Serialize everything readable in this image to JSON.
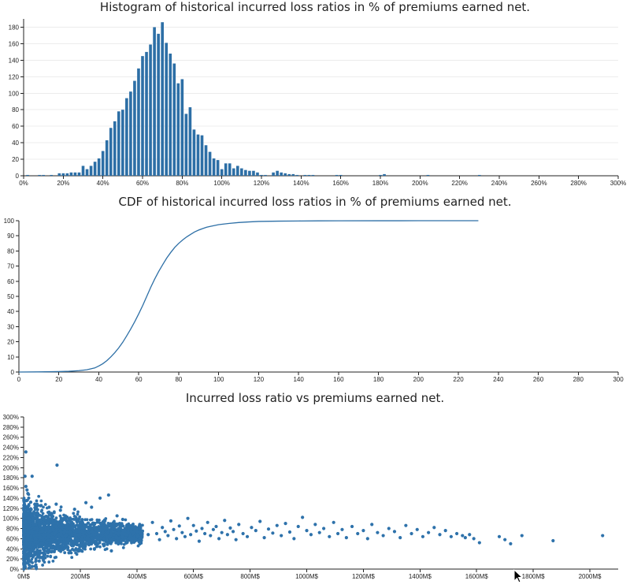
{
  "chart_data": [
    {
      "type": "bar",
      "title": "Histogram of historical incurred loss ratios in % of premiums earned net.",
      "xlim": [
        0,
        300
      ],
      "ylim": [
        0,
        190
      ],
      "bin_width": 2,
      "xticks": [
        0,
        20,
        40,
        60,
        80,
        100,
        120,
        140,
        160,
        180,
        200,
        220,
        240,
        260,
        280,
        300
      ],
      "xtick_suffix": "%",
      "yticks": [
        0,
        20,
        40,
        60,
        80,
        100,
        120,
        140,
        160,
        180
      ],
      "bins": [
        {
          "x": 2,
          "y": 1
        },
        {
          "x": 4,
          "y": 0
        },
        {
          "x": 8,
          "y": 1
        },
        {
          "x": 10,
          "y": 1
        },
        {
          "x": 12,
          "y": 0
        },
        {
          "x": 14,
          "y": 1
        },
        {
          "x": 18,
          "y": 3
        },
        {
          "x": 20,
          "y": 3
        },
        {
          "x": 22,
          "y": 3
        },
        {
          "x": 24,
          "y": 4
        },
        {
          "x": 26,
          "y": 4
        },
        {
          "x": 28,
          "y": 4
        },
        {
          "x": 30,
          "y": 12
        },
        {
          "x": 32,
          "y": 8
        },
        {
          "x": 34,
          "y": 12
        },
        {
          "x": 36,
          "y": 17
        },
        {
          "x": 38,
          "y": 21
        },
        {
          "x": 40,
          "y": 30
        },
        {
          "x": 42,
          "y": 43
        },
        {
          "x": 44,
          "y": 58
        },
        {
          "x": 46,
          "y": 66
        },
        {
          "x": 48,
          "y": 78
        },
        {
          "x": 50,
          "y": 80
        },
        {
          "x": 52,
          "y": 94
        },
        {
          "x": 54,
          "y": 102
        },
        {
          "x": 56,
          "y": 115
        },
        {
          "x": 58,
          "y": 130
        },
        {
          "x": 60,
          "y": 145
        },
        {
          "x": 62,
          "y": 150
        },
        {
          "x": 64,
          "y": 159
        },
        {
          "x": 66,
          "y": 180
        },
        {
          "x": 68,
          "y": 172
        },
        {
          "x": 70,
          "y": 186
        },
        {
          "x": 72,
          "y": 161
        },
        {
          "x": 74,
          "y": 148
        },
        {
          "x": 76,
          "y": 136
        },
        {
          "x": 78,
          "y": 112
        },
        {
          "x": 80,
          "y": 117
        },
        {
          "x": 82,
          "y": 75
        },
        {
          "x": 84,
          "y": 83
        },
        {
          "x": 86,
          "y": 56
        },
        {
          "x": 88,
          "y": 50
        },
        {
          "x": 90,
          "y": 49
        },
        {
          "x": 92,
          "y": 37
        },
        {
          "x": 94,
          "y": 29
        },
        {
          "x": 96,
          "y": 21
        },
        {
          "x": 98,
          "y": 19
        },
        {
          "x": 100,
          "y": 8
        },
        {
          "x": 102,
          "y": 15
        },
        {
          "x": 104,
          "y": 15
        },
        {
          "x": 106,
          "y": 9
        },
        {
          "x": 108,
          "y": 12
        },
        {
          "x": 110,
          "y": 9
        },
        {
          "x": 112,
          "y": 7
        },
        {
          "x": 114,
          "y": 6
        },
        {
          "x": 116,
          "y": 6
        },
        {
          "x": 118,
          "y": 4
        },
        {
          "x": 120,
          "y": 1
        },
        {
          "x": 122,
          "y": 1
        },
        {
          "x": 126,
          "y": 4
        },
        {
          "x": 128,
          "y": 6
        },
        {
          "x": 130,
          "y": 4
        },
        {
          "x": 132,
          "y": 3
        },
        {
          "x": 134,
          "y": 2
        },
        {
          "x": 136,
          "y": 2
        },
        {
          "x": 138,
          "y": 1
        },
        {
          "x": 142,
          "y": 1
        },
        {
          "x": 144,
          "y": 1
        },
        {
          "x": 146,
          "y": 1
        },
        {
          "x": 158,
          "y": 1
        },
        {
          "x": 160,
          "y": 1
        },
        {
          "x": 180,
          "y": 1
        },
        {
          "x": 182,
          "y": 2
        },
        {
          "x": 204,
          "y": 1
        },
        {
          "x": 230,
          "y": 1
        }
      ]
    },
    {
      "type": "line",
      "title": "CDF of historical incurred loss ratios in % of premiums earned net.",
      "xlim": [
        0,
        300
      ],
      "ylim": [
        0,
        100
      ],
      "xticks": [
        0,
        20,
        40,
        60,
        80,
        100,
        120,
        140,
        160,
        180,
        200,
        220,
        240,
        260,
        280,
        300
      ],
      "yticks": [
        0,
        10,
        20,
        30,
        40,
        50,
        60,
        70,
        80,
        90,
        100
      ],
      "x": [
        0,
        10,
        20,
        25,
        30,
        34,
        38,
        40,
        42,
        44,
        46,
        48,
        50,
        52,
        54,
        56,
        58,
        60,
        62,
        64,
        66,
        68,
        70,
        72,
        74,
        76,
        78,
        80,
        82,
        84,
        86,
        88,
        90,
        92,
        94,
        96,
        100,
        105,
        110,
        115,
        120,
        130,
        140,
        150,
        160,
        180,
        200,
        230
      ],
      "y": [
        0,
        0.1,
        0.3,
        0.5,
        0.9,
        1.5,
        2.7,
        4,
        5.5,
        7.5,
        10,
        12.8,
        16,
        19.7,
        24,
        28.5,
        33.3,
        38.5,
        44,
        50,
        56,
        61.5,
        66.5,
        71,
        75.3,
        79,
        82.3,
        85,
        87.3,
        89.3,
        91,
        92.6,
        93.8,
        94.8,
        95.7,
        96.3,
        97.4,
        98.2,
        98.8,
        99.2,
        99.5,
        99.7,
        99.82,
        99.9,
        99.94,
        99.97,
        99.99,
        100
      ]
    },
    {
      "type": "scatter",
      "title": "Incurred loss ratio vs premiums earned net.",
      "xlim": [
        0,
        2100
      ],
      "ylim": [
        0,
        300
      ],
      "xticks": [
        0,
        200,
        400,
        600,
        800,
        1000,
        1200,
        1400,
        1600,
        1800,
        2000
      ],
      "xtick_suffix": "M$",
      "yticks": [
        0,
        20,
        40,
        60,
        80,
        100,
        120,
        140,
        160,
        180,
        200,
        220,
        240,
        260,
        280,
        300
      ],
      "ytick_suffix": "%",
      "points": [
        {
          "x": 8,
          "y": 231
        },
        {
          "x": 5,
          "y": 183
        },
        {
          "x": 30,
          "y": 183
        },
        {
          "x": 118,
          "y": 205
        },
        {
          "x": 8,
          "y": 163
        },
        {
          "x": 12,
          "y": 156
        },
        {
          "x": 15,
          "y": 149
        },
        {
          "x": 18,
          "y": 140
        },
        {
          "x": 10,
          "y": 135
        },
        {
          "x": 25,
          "y": 132
        },
        {
          "x": 40,
          "y": 128
        },
        {
          "x": 60,
          "y": 125
        },
        {
          "x": 90,
          "y": 122
        },
        {
          "x": 115,
          "y": 128
        },
        {
          "x": 130,
          "y": 116
        },
        {
          "x": 220,
          "y": 131
        },
        {
          "x": 270,
          "y": 140
        },
        {
          "x": 300,
          "y": 146
        },
        {
          "x": 240,
          "y": 122
        },
        {
          "x": 180,
          "y": 118
        },
        {
          "x": 12,
          "y": 12
        },
        {
          "x": 20,
          "y": 8
        },
        {
          "x": 30,
          "y": 5
        },
        {
          "x": 45,
          "y": 1
        },
        {
          "x": 55,
          "y": 16
        },
        {
          "x": 70,
          "y": 20
        },
        {
          "x": 35,
          "y": 26
        },
        {
          "x": 25,
          "y": 30
        },
        {
          "x": 160,
          "y": 32
        },
        {
          "x": 200,
          "y": 38
        },
        {
          "x": 250,
          "y": 40
        },
        {
          "x": 310,
          "y": 36
        },
        {
          "x": 330,
          "y": 105
        },
        {
          "x": 350,
          "y": 98
        },
        {
          "x": 370,
          "y": 72
        },
        {
          "x": 390,
          "y": 60
        },
        {
          "x": 410,
          "y": 88
        },
        {
          "x": 420,
          "y": 75
        },
        {
          "x": 440,
          "y": 68
        },
        {
          "x": 455,
          "y": 92
        },
        {
          "x": 470,
          "y": 70
        },
        {
          "x": 480,
          "y": 58
        },
        {
          "x": 490,
          "y": 82
        },
        {
          "x": 500,
          "y": 74
        },
        {
          "x": 510,
          "y": 66
        },
        {
          "x": 520,
          "y": 95
        },
        {
          "x": 530,
          "y": 78
        },
        {
          "x": 540,
          "y": 60
        },
        {
          "x": 550,
          "y": 85
        },
        {
          "x": 560,
          "y": 72
        },
        {
          "x": 570,
          "y": 64
        },
        {
          "x": 580,
          "y": 100
        },
        {
          "x": 590,
          "y": 68
        },
        {
          "x": 600,
          "y": 86
        },
        {
          "x": 610,
          "y": 75
        },
        {
          "x": 620,
          "y": 55
        },
        {
          "x": 630,
          "y": 80
        },
        {
          "x": 640,
          "y": 70
        },
        {
          "x": 650,
          "y": 92
        },
        {
          "x": 660,
          "y": 66
        },
        {
          "x": 670,
          "y": 78
        },
        {
          "x": 680,
          "y": 84
        },
        {
          "x": 690,
          "y": 60
        },
        {
          "x": 700,
          "y": 72
        },
        {
          "x": 710,
          "y": 96
        },
        {
          "x": 720,
          "y": 68
        },
        {
          "x": 730,
          "y": 81
        },
        {
          "x": 740,
          "y": 74
        },
        {
          "x": 750,
          "y": 58
        },
        {
          "x": 760,
          "y": 88
        },
        {
          "x": 775,
          "y": 70
        },
        {
          "x": 790,
          "y": 64
        },
        {
          "x": 805,
          "y": 82
        },
        {
          "x": 820,
          "y": 76
        },
        {
          "x": 835,
          "y": 94
        },
        {
          "x": 850,
          "y": 62
        },
        {
          "x": 865,
          "y": 79
        },
        {
          "x": 880,
          "y": 71
        },
        {
          "x": 895,
          "y": 86
        },
        {
          "x": 910,
          "y": 66
        },
        {
          "x": 925,
          "y": 90
        },
        {
          "x": 940,
          "y": 73
        },
        {
          "x": 955,
          "y": 60
        },
        {
          "x": 970,
          "y": 84
        },
        {
          "x": 985,
          "y": 102
        },
        {
          "x": 1000,
          "y": 76
        },
        {
          "x": 1015,
          "y": 68
        },
        {
          "x": 1030,
          "y": 88
        },
        {
          "x": 1045,
          "y": 72
        },
        {
          "x": 1060,
          "y": 80
        },
        {
          "x": 1080,
          "y": 64
        },
        {
          "x": 1095,
          "y": 92
        },
        {
          "x": 1110,
          "y": 70
        },
        {
          "x": 1125,
          "y": 78
        },
        {
          "x": 1140,
          "y": 62
        },
        {
          "x": 1160,
          "y": 84
        },
        {
          "x": 1180,
          "y": 70
        },
        {
          "x": 1200,
          "y": 76
        },
        {
          "x": 1215,
          "y": 60
        },
        {
          "x": 1230,
          "y": 88
        },
        {
          "x": 1250,
          "y": 72
        },
        {
          "x": 1270,
          "y": 66
        },
        {
          "x": 1290,
          "y": 80
        },
        {
          "x": 1310,
          "y": 74
        },
        {
          "x": 1330,
          "y": 62
        },
        {
          "x": 1350,
          "y": 86
        },
        {
          "x": 1370,
          "y": 70
        },
        {
          "x": 1390,
          "y": 78
        },
        {
          "x": 1410,
          "y": 64
        },
        {
          "x": 1430,
          "y": 72
        },
        {
          "x": 1450,
          "y": 82
        },
        {
          "x": 1470,
          "y": 68
        },
        {
          "x": 1490,
          "y": 76
        },
        {
          "x": 1510,
          "y": 64
        },
        {
          "x": 1530,
          "y": 70
        },
        {
          "x": 1550,
          "y": 66
        },
        {
          "x": 1560,
          "y": 62
        },
        {
          "x": 1575,
          "y": 68
        },
        {
          "x": 1590,
          "y": 60
        },
        {
          "x": 1610,
          "y": 52
        },
        {
          "x": 1680,
          "y": 64
        },
        {
          "x": 1700,
          "y": 58
        },
        {
          "x": 1720,
          "y": 50
        },
        {
          "x": 1760,
          "y": 66
        },
        {
          "x": 1870,
          "y": 56
        },
        {
          "x": 2045,
          "y": 66
        }
      ],
      "dense_cluster": {
        "x_range": [
          0,
          420
        ],
        "y_center": 70,
        "count": 2600
      }
    }
  ]
}
